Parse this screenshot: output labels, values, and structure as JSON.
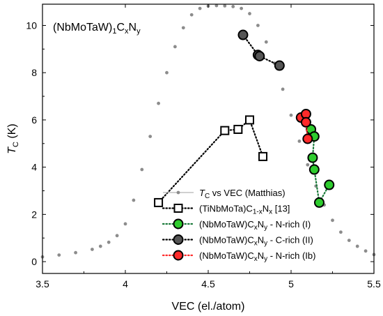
{
  "chart_data": {
    "type": "scatter",
    "annotation": {
      "main": "(NbMoTaW)",
      "sub1": "1",
      "c": "C",
      "subx": "x",
      "n": "N",
      "suby": "y"
    },
    "xlabel": "VEC (el./atom)",
    "ylabel": {
      "main": "T",
      "sub": "C",
      "unit": " (K)"
    },
    "xlim": [
      3.5,
      5.5
    ],
    "ylim": [
      -0.5,
      10.9
    ],
    "xticks": [
      3.5,
      4.0,
      4.5,
      5.0,
      5.5
    ],
    "xtick_labels": [
      "3.5",
      "4",
      "4.5",
      "5",
      "5.5"
    ],
    "yticks": [
      0,
      2,
      4,
      6,
      8,
      10
    ],
    "ytick_labels": [
      "0",
      "2",
      "4",
      "6",
      "8",
      "10"
    ],
    "grid": false,
    "legend_position": "bottom-right",
    "series": [
      {
        "key": "matthias",
        "name_parts": [
          "T",
          "C",
          " vs VEC (Matthias)"
        ],
        "marker": "dot",
        "color": "#8c8c8c",
        "line": "solid",
        "x": [
          3.5,
          3.6,
          3.7,
          3.8,
          3.85,
          3.9,
          3.95,
          4.0,
          4.05,
          4.1,
          4.15,
          4.2,
          4.25,
          4.3,
          4.35,
          4.4,
          4.45,
          4.5,
          4.55,
          4.6,
          4.65,
          4.7,
          4.75,
          4.8,
          4.85,
          4.9,
          4.95,
          5.0,
          5.05,
          5.1,
          5.15,
          5.2,
          5.25,
          5.3,
          5.35,
          5.4,
          5.45,
          5.5
        ],
        "y": [
          0.2,
          0.28,
          0.38,
          0.52,
          0.65,
          0.82,
          1.1,
          1.6,
          2.6,
          3.9,
          5.3,
          6.7,
          8.0,
          9.1,
          9.9,
          10.45,
          10.72,
          10.82,
          10.84,
          10.83,
          10.8,
          10.72,
          10.5,
          10.0,
          9.3,
          8.4,
          7.3,
          6.2,
          5.1,
          4.1,
          3.2,
          2.4,
          1.75,
          1.25,
          0.9,
          0.65,
          0.45,
          0.3
        ]
      },
      {
        "key": "tinbmota",
        "name_parts": [
          "(TiNbMoTa)C",
          "1-x",
          "N",
          "x",
          " [13]"
        ],
        "marker": "square",
        "color": "#000000",
        "line": "dotted",
        "x": [
          4.2,
          4.6,
          4.68,
          4.75,
          4.83
        ],
        "y": [
          2.5,
          5.55,
          5.6,
          6.0,
          4.45
        ]
      },
      {
        "key": "nrich1",
        "name_parts": [
          "(NbMoTaW)C",
          "x",
          "N",
          "y",
          " - N-rich (I)"
        ],
        "marker": "circle",
        "color": "#2ecc2e",
        "line": "dotted",
        "line_color": "#1a7a3a",
        "x": [
          5.12,
          5.14,
          5.13,
          5.14,
          5.17,
          5.23
        ],
        "y": [
          5.6,
          5.3,
          4.4,
          3.9,
          2.5,
          3.25
        ]
      },
      {
        "key": "crich2",
        "name_parts": [
          "(NbMoTaW)C",
          "x",
          "N",
          "y",
          " - C-rich (II)"
        ],
        "marker": "circle",
        "color": "#555555",
        "line": "dotted",
        "line_color": "#000000",
        "x": [
          4.71,
          4.8,
          4.81,
          4.93
        ],
        "y": [
          9.6,
          8.75,
          8.7,
          8.3
        ]
      },
      {
        "key": "nrich1b",
        "name_parts": [
          "(NbMoTaW)C",
          "x",
          "N",
          "y",
          " - N-rich (Ib)"
        ],
        "marker": "circle",
        "color": "#ff2a2a",
        "line": "dotted",
        "line_color": "#ff2a2a",
        "x": [
          5.06,
          5.09,
          5.09,
          5.1
        ],
        "y": [
          6.1,
          6.25,
          5.9,
          5.2
        ]
      }
    ]
  }
}
